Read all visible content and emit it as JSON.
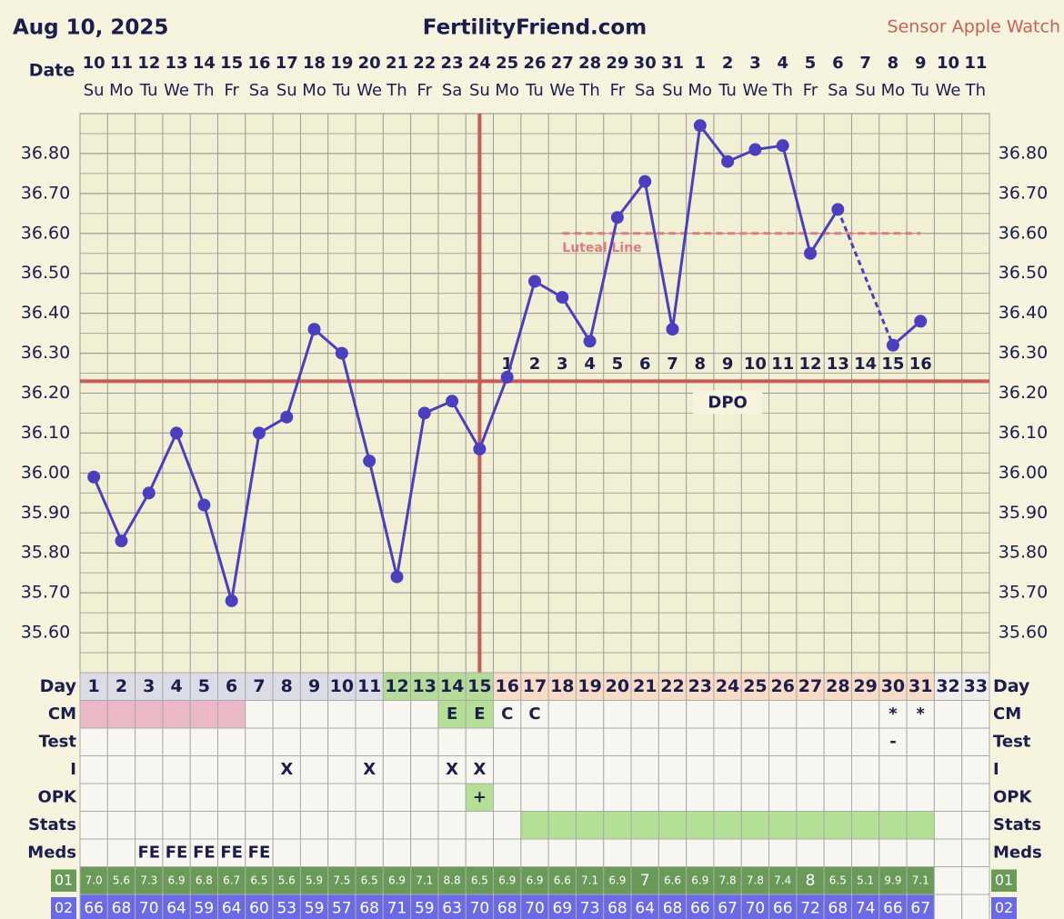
{
  "chart_data": {
    "type": "line",
    "date": "Aug 10, 2025",
    "title": "FertilityFriend.com",
    "subtitle": "Sensor Apple Watch",
    "date_label": "Date",
    "dates": [
      10,
      11,
      12,
      13,
      14,
      15,
      16,
      17,
      18,
      19,
      20,
      21,
      22,
      23,
      24,
      25,
      26,
      27,
      28,
      29,
      30,
      31,
      1,
      2,
      3,
      4,
      5,
      6,
      7,
      8,
      9,
      10,
      11
    ],
    "weekdays": [
      "Su",
      "Mo",
      "Tu",
      "We",
      "Th",
      "Fr",
      "Sa",
      "Su",
      "Mo",
      "Tu",
      "We",
      "Th",
      "Fr",
      "Sa",
      "Su",
      "Mo",
      "Tu",
      "We",
      "Th",
      "Fr",
      "Sa",
      "Su",
      "Mo",
      "Tu",
      "We",
      "Th",
      "Fr",
      "Sa",
      "Su",
      "Mo",
      "Tu",
      "We",
      "Th"
    ],
    "day_label": "Day",
    "categories": [
      1,
      2,
      3,
      4,
      5,
      6,
      7,
      8,
      9,
      10,
      11,
      12,
      13,
      14,
      15,
      16,
      17,
      18,
      19,
      20,
      21,
      22,
      23,
      24,
      25,
      26,
      27,
      28,
      29,
      30,
      31,
      32,
      33
    ],
    "values": [
      35.99,
      35.83,
      35.95,
      36.1,
      35.92,
      35.68,
      36.1,
      36.14,
      36.36,
      36.3,
      36.03,
      35.74,
      36.15,
      36.18,
      36.06,
      36.24,
      36.48,
      36.44,
      36.33,
      36.64,
      36.73,
      36.36,
      36.87,
      36.78,
      36.81,
      36.82,
      36.55,
      36.66,
      null,
      36.32,
      36.38,
      null,
      null
    ],
    "color": "#4b3fbf",
    "ylim": [
      35.5,
      36.9
    ],
    "yticks": [
      {
        "value": 35.6,
        "label": "35.60"
      },
      {
        "value": 35.7,
        "label": "35.70"
      },
      {
        "value": 35.8,
        "label": "35.80"
      },
      {
        "value": 35.9,
        "label": "35.90"
      },
      {
        "value": 36.0,
        "label": "36.00"
      },
      {
        "value": 36.1,
        "label": "36.10"
      },
      {
        "value": 36.2,
        "label": "36.20"
      },
      {
        "value": 36.3,
        "label": "36.30"
      },
      {
        "value": 36.4,
        "label": "36.40"
      },
      {
        "value": 36.5,
        "label": "36.50"
      },
      {
        "value": 36.6,
        "label": "36.60"
      },
      {
        "value": 36.7,
        "label": "36.70"
      },
      {
        "value": 36.8,
        "label": "36.80"
      }
    ],
    "grid": true,
    "coverline": 36.23,
    "line_color": "#c85a5a",
    "ovulation_day": 15,
    "luteal_line": {
      "label": "Luteal Line",
      "value": 36.6,
      "from_day": 18,
      "to_day": 31,
      "color": "#e07c7c"
    },
    "dpo": {
      "label": "DPO",
      "start_day": 16,
      "values": [
        1,
        2,
        3,
        4,
        5,
        6,
        7,
        8,
        9,
        10,
        11,
        12,
        13,
        14,
        15,
        16
      ]
    },
    "day_shades": [
      {
        "color": "#dcdce6",
        "days": [
          1,
          2,
          3,
          4,
          5,
          6,
          7,
          8,
          9,
          10,
          11
        ]
      },
      {
        "color": "#b4dc98",
        "days": [
          12,
          13,
          14,
          15
        ]
      },
      {
        "color": "#f8dcc6",
        "days": [
          16,
          17,
          18,
          19,
          20,
          21,
          22,
          23,
          24,
          25,
          26,
          27,
          28,
          29,
          30,
          31
        ]
      },
      {
        "color": "#eeeeee",
        "days": [
          32,
          33
        ]
      }
    ],
    "rows": [
      {
        "label": "CM",
        "cells": {
          "14": "E",
          "15": "E",
          "16": "C",
          "17": "C",
          "30": "*",
          "31": "*"
        },
        "shades": [
          {
            "color": "#ebb8c6",
            "days": [
              1,
              2,
              3,
              4,
              5,
              6
            ]
          },
          {
            "color": "#b4e096",
            "days": [
              14,
              15
            ]
          }
        ]
      },
      {
        "label": "Test",
        "cells": {
          "30": "-"
        },
        "shades": []
      },
      {
        "label": "I",
        "cells": {
          "8": "X",
          "11": "X",
          "14": "X",
          "15": "X"
        },
        "shades": []
      },
      {
        "label": "OPK",
        "cells": {
          "15": "+"
        },
        "shades": [
          {
            "color": "#b4e096",
            "days": [
              15
            ]
          }
        ]
      },
      {
        "label": "Stats",
        "cells": {},
        "shades": [
          {
            "color": "#b4e096",
            "days": [
              17,
              18,
              19,
              20,
              21,
              22,
              23,
              24,
              25,
              26,
              27,
              28,
              29,
              30,
              31
            ]
          }
        ]
      },
      {
        "label": "Meds",
        "cells": {
          "3": "FE",
          "4": "FE",
          "5": "FE",
          "6": "FE",
          "7": "FE"
        },
        "shades": []
      }
    ],
    "readings": [
      {
        "label": "01",
        "color": "#6a9a58",
        "values": [
          "7.0",
          "5.6",
          "7.3",
          "6.9",
          "6.8",
          "6.7",
          "6.5",
          "5.6",
          "5.9",
          "7.5",
          "6.5",
          "6.9",
          "7.1",
          "8.8",
          "6.5",
          "6.9",
          "6.9",
          "6.6",
          "7.1",
          "6.9",
          "7",
          "6.6",
          "6.9",
          "7.8",
          "7.8",
          "7.4",
          "8",
          "6.5",
          "5.1",
          "9.9",
          "7.1"
        ]
      },
      {
        "label": "02",
        "color": "#6a6ae6",
        "values": [
          66,
          68,
          70,
          64,
          59,
          64,
          60,
          53,
          59,
          57,
          68,
          71,
          59,
          63,
          70,
          68,
          70,
          69,
          73,
          68,
          64,
          68,
          66,
          67,
          70,
          66,
          72,
          68,
          74,
          66,
          67
        ]
      }
    ]
  }
}
